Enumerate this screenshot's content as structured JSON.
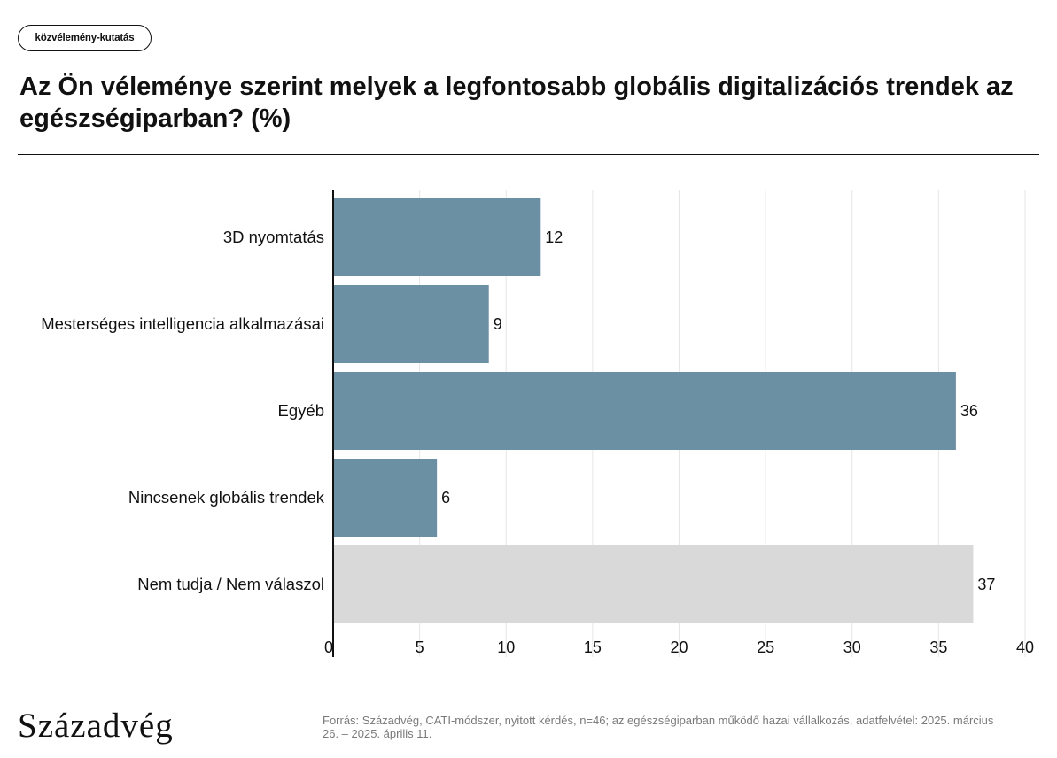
{
  "tag": "közvélemény-kutatás",
  "title": "Az Ön véleménye szerint melyek a legfontosabb globális digitalizációs trendek az egészségiparban? (%)",
  "brand": "Századvég",
  "source": "Forrás: Századvég, CATI-módszer, nyitott kérdés, n=46; az egészségiparban működő hazai vállalkozás, adatfelvétel: 2025. március 26. – 2025. április 11.",
  "colors": {
    "main": "#6b8fa3",
    "muted": "#d9d9d9",
    "grid": "#e6e6e6",
    "axis": "#111111"
  },
  "chart_data": {
    "type": "bar",
    "orientation": "horizontal",
    "categories": [
      "3D nyomtatás",
      "Mesterséges intelligencia alkalmazásai",
      "Egyéb",
      "Nincsenek globális trendek",
      "Nem tudja / Nem válaszol"
    ],
    "values": [
      12,
      9,
      36,
      6,
      37
    ],
    "value_labels": [
      "12",
      "9",
      "36",
      "6",
      "37"
    ],
    "bar_colors": [
      "#6b8fa3",
      "#6b8fa3",
      "#6b8fa3",
      "#6b8fa3",
      "#d9d9d9"
    ],
    "xlim": [
      0,
      40
    ],
    "xticks": [
      0,
      5,
      10,
      15,
      20,
      25,
      30,
      35,
      40
    ],
    "grid": true,
    "legend": "none"
  }
}
